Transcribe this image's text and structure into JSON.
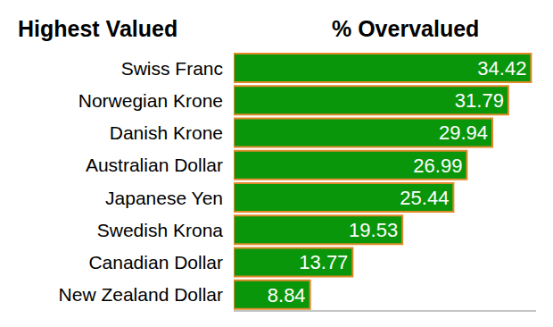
{
  "chart_data": {
    "type": "bar",
    "orientation": "horizontal",
    "y_label": "Highest Valued",
    "x_label": "% Overvalued",
    "categories": [
      "Swiss Franc",
      "Norwegian Krone",
      "Danish Krone",
      "Australian Dollar",
      "Japanese Yen",
      "Swedish Krona",
      "Canadian Dollar",
      "New Zealand Dollar"
    ],
    "values": [
      34.42,
      31.79,
      29.94,
      26.99,
      25.44,
      19.53,
      13.77,
      8.84
    ],
    "color": "#0a960a",
    "xlim": [
      0,
      35
    ],
    "data_labels": true,
    "tick_labels": false,
    "grid": false
  }
}
